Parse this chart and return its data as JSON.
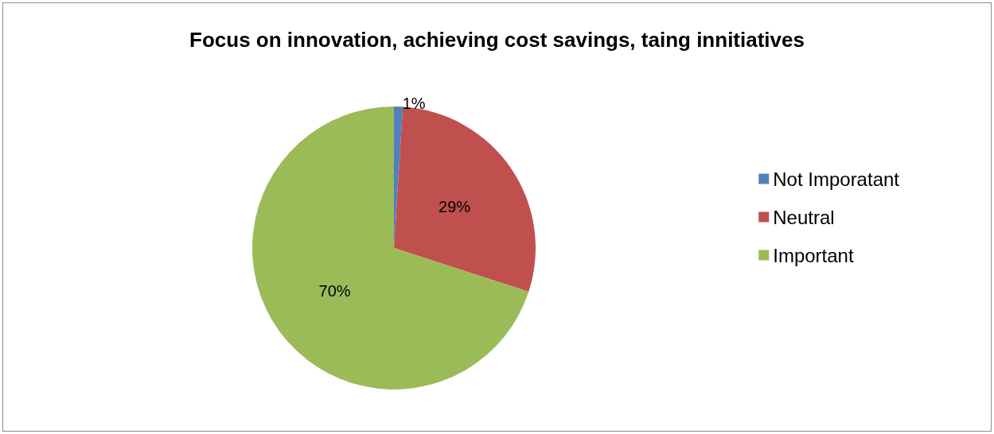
{
  "chart_data": {
    "type": "pie",
    "title": "Focus on innovation, achieving cost savings, taing innitiatives",
    "categories": [
      "Not Imporatant",
      "Neutral",
      "Important"
    ],
    "values": [
      1,
      29,
      70
    ],
    "colors": [
      "#4f81bd",
      "#c0504d",
      "#9bbb59"
    ],
    "value_labels": [
      "1%",
      "29%",
      "70%"
    ],
    "legend": "right"
  }
}
